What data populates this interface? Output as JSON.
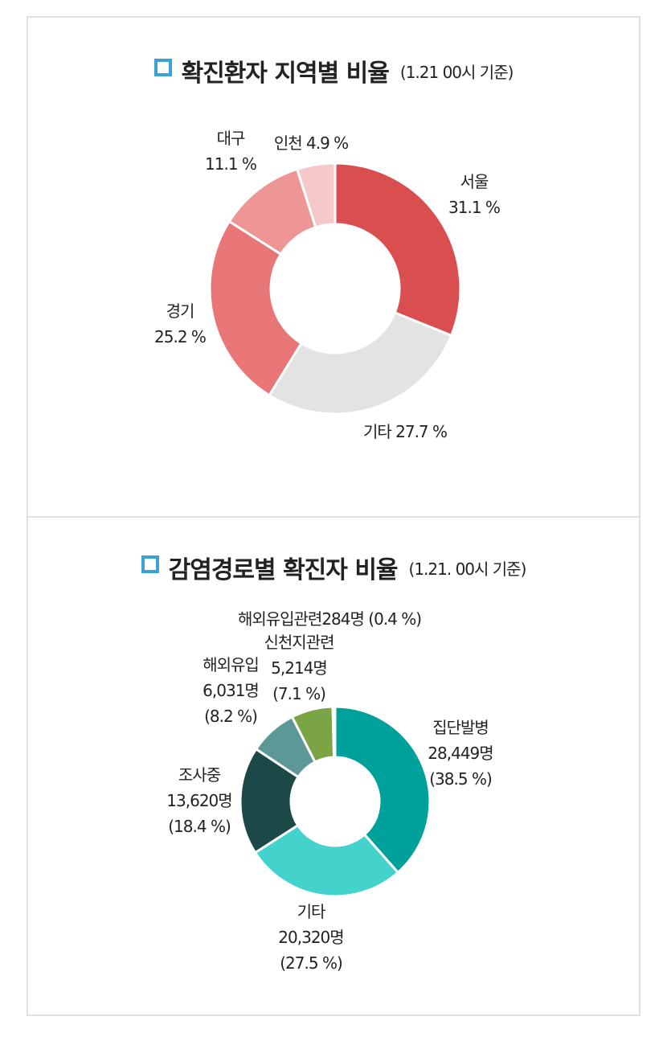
{
  "chart_data": [
    {
      "type": "pie",
      "variant": "donut",
      "title": "확진환자 지역별 비율",
      "subtitle": "(1.21 00시 기준)",
      "unit": "%",
      "slices": [
        {
          "label": "서울",
          "value": 31.1,
          "value_text": "31.1 %",
          "color": "#d94f4f"
        },
        {
          "label": "기타",
          "value": 27.7,
          "value_text": "27.7 %",
          "color": "#e3e3e3"
        },
        {
          "label": "경기",
          "value": 25.2,
          "value_text": "25.2 %",
          "color": "#e87676"
        },
        {
          "label": "대구",
          "value": 11.1,
          "value_text": "11.1 %",
          "color": "#ee9595"
        },
        {
          "label": "인천",
          "value": 4.9,
          "value_text": "4.9 %",
          "color": "#f5c8ca"
        }
      ]
    },
    {
      "type": "pie",
      "variant": "donut",
      "title": "감염경로별 확진자 비율",
      "subtitle": "(1.21. 00시 기준)",
      "unit": "명",
      "slices": [
        {
          "label": "집단발병",
          "count": "28,449명",
          "value": 38.5,
          "pct_text": "(38.5 %)",
          "color": "#00a19a"
        },
        {
          "label": "기타",
          "count": "20,320명",
          "value": 27.5,
          "pct_text": "(27.5 %)",
          "color": "#44d2cc"
        },
        {
          "label": "조사중",
          "count": "13,620명",
          "value": 18.4,
          "pct_text": "(18.4 %)",
          "color": "#1c4848"
        },
        {
          "label": "해외유입",
          "count": "6,031명",
          "value": 8.2,
          "pct_text": "(8.2 %)",
          "color": "#5b9896"
        },
        {
          "label": "신천지관련",
          "count": "5,214명",
          "value": 7.1,
          "pct_text": "(7.1 %)",
          "color": "#7ba545"
        },
        {
          "label": "해외유입관련",
          "count": "284명",
          "value": 0.4,
          "pct_text": "(0.4 %)",
          "color": "#9cc763"
        }
      ]
    }
  ]
}
